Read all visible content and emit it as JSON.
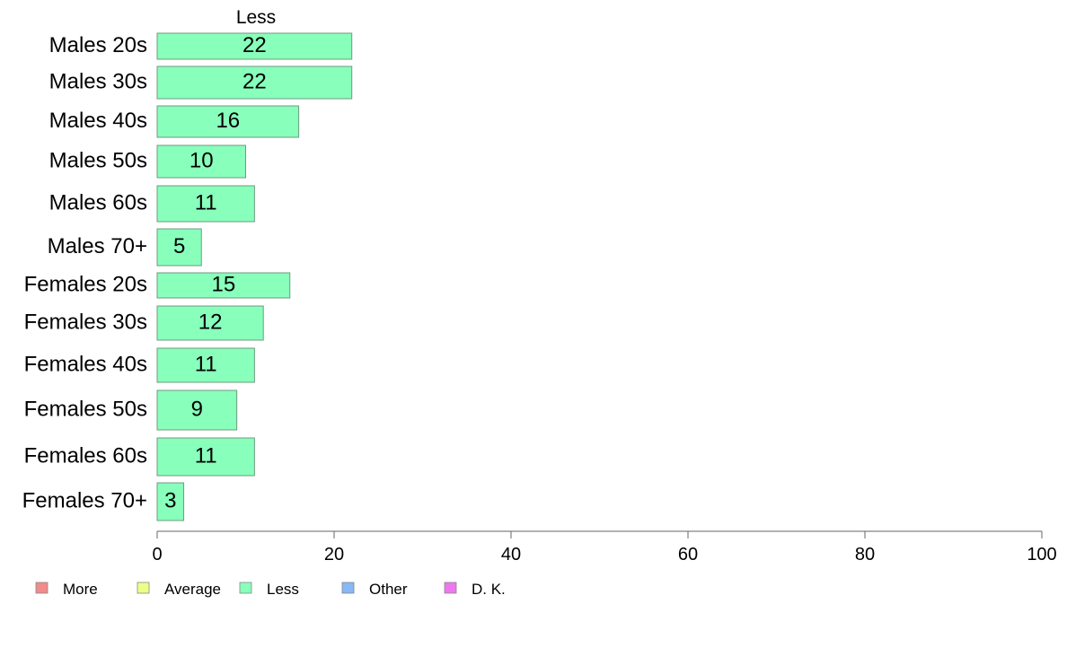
{
  "chart_data": {
    "type": "bar",
    "orientation": "horizontal",
    "panel_title": "Less",
    "categories": [
      "Males 20s",
      "Males 30s",
      "Males 40s",
      "Males 50s",
      "Males 60s",
      "Males 70+",
      "Females 20s",
      "Females 30s",
      "Females 40s",
      "Females 50s",
      "Females 60s",
      "Females 70+"
    ],
    "series": [
      {
        "name": "Less",
        "values": [
          22,
          22,
          16,
          10,
          11,
          5,
          15,
          12,
          11,
          9,
          11,
          3
        ]
      }
    ],
    "data_labels": [
      "22",
      "22",
      "16",
      "10",
      "11",
      "5",
      "15",
      "12",
      "11",
      "9",
      "11",
      "3"
    ],
    "xlim": [
      0,
      100
    ],
    "x_ticks": [
      "0",
      "20",
      "40",
      "60",
      "80",
      "100"
    ],
    "grid": false,
    "legend": {
      "placement": "bottom-left",
      "items": [
        {
          "label": "More",
          "color": "#f28b8b"
        },
        {
          "label": "Average",
          "color": "#eeff88"
        },
        {
          "label": "Less",
          "color": "#88ffbb"
        },
        {
          "label": "Other",
          "color": "#88b8f5"
        },
        {
          "label": "D. K.",
          "color": "#ee77ee"
        }
      ]
    },
    "colors": {
      "bar_fill": "#88ffbb",
      "bar_stroke": "#6f9a7f",
      "axis": "#666666"
    }
  }
}
